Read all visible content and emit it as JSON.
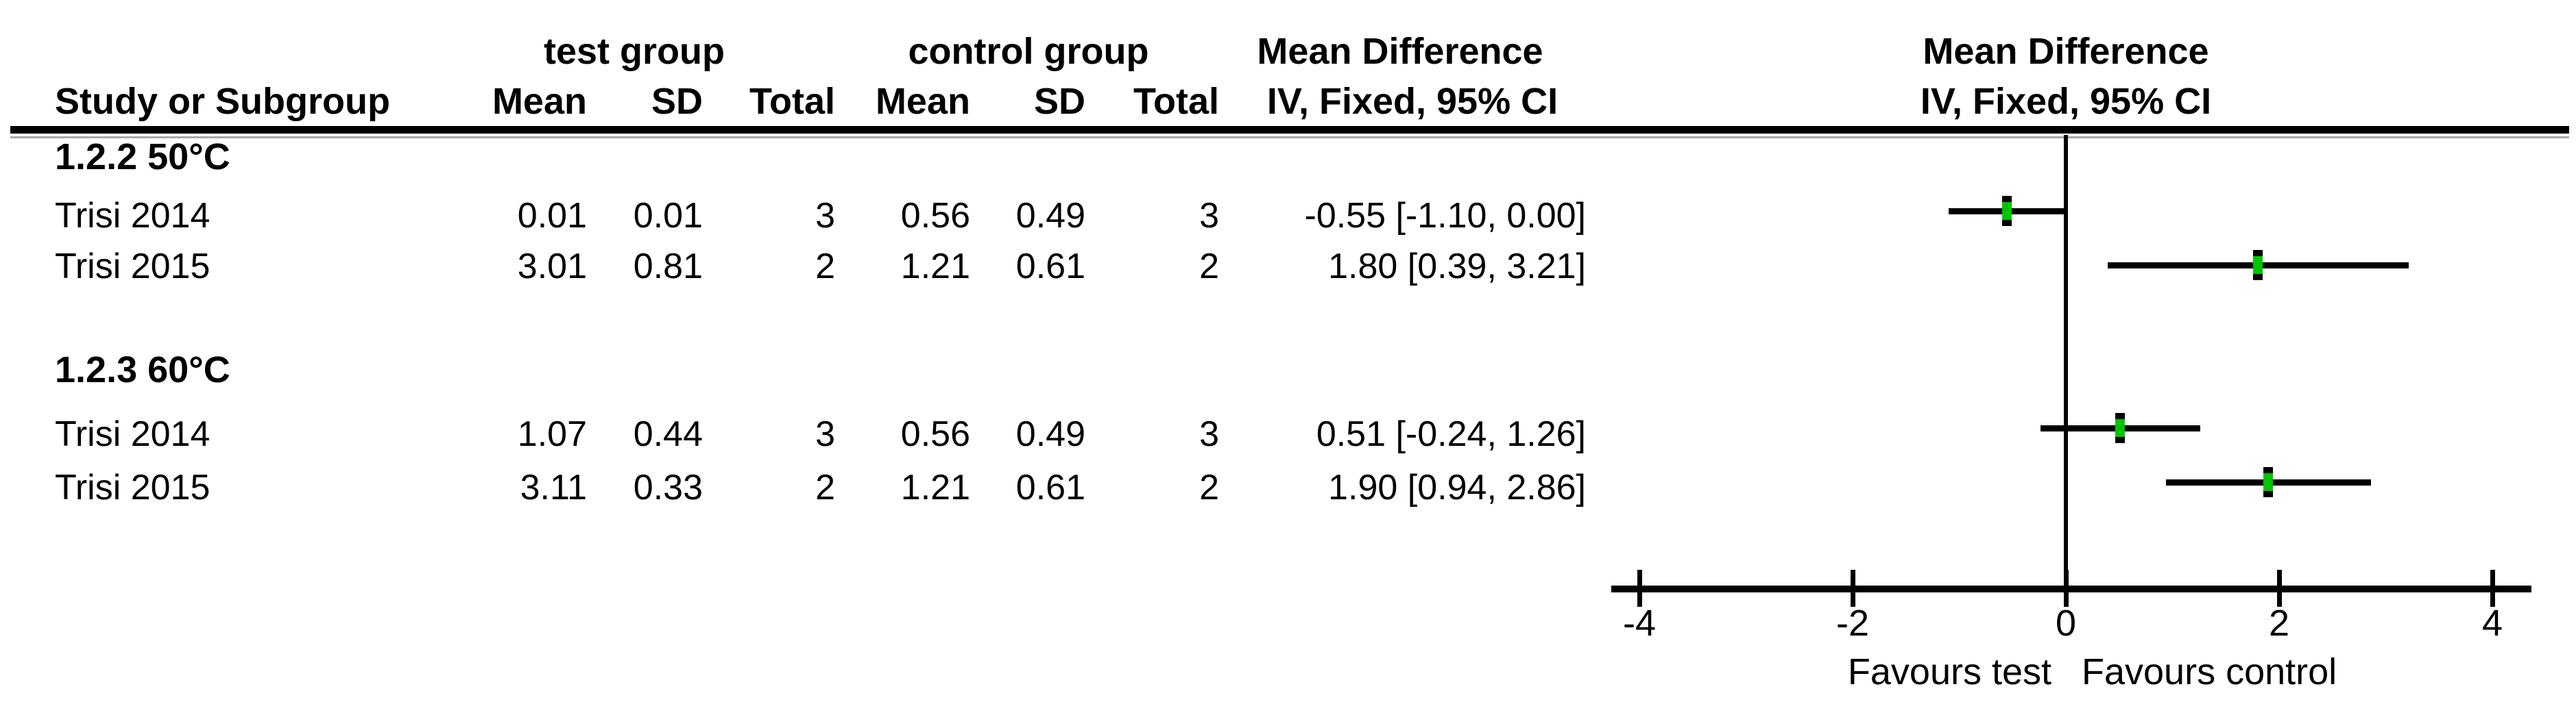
{
  "header": {
    "test_group": "test group",
    "control_group": "control group",
    "effect_title": "Mean Difference",
    "effect_subtitle": "IV, Fixed, 95% CI",
    "plot_title": "Mean Difference",
    "plot_subtitle": "IV, Fixed, 95% CI",
    "study_col": "Study or Subgroup",
    "subcols": [
      "Mean",
      "SD",
      "Total",
      "Mean",
      "SD",
      "Total"
    ]
  },
  "table": {
    "rows": [
      {
        "type": "subgroup",
        "label": "1.2.2 50°C"
      },
      {
        "type": "study",
        "study": "Trisi 2014",
        "t_mean": "0.01",
        "t_sd": "0.01",
        "t_total": "3",
        "c_mean": "0.56",
        "c_sd": "0.49",
        "c_total": "3",
        "ci": "-0.55 [-1.10, 0.00]",
        "est": -0.55,
        "lo": -1.1,
        "hi": 0.0
      },
      {
        "type": "study",
        "study": "Trisi 2015",
        "t_mean": "3.01",
        "t_sd": "0.81",
        "t_total": "2",
        "c_mean": "1.21",
        "c_sd": "0.61",
        "c_total": "2",
        "ci": "1.80 [0.39, 3.21]",
        "est": 1.8,
        "lo": 0.39,
        "hi": 3.21
      },
      {
        "type": "subgroup",
        "label": "1.2.3 60°C"
      },
      {
        "type": "study",
        "study": "Trisi 2014",
        "t_mean": "1.07",
        "t_sd": "0.44",
        "t_total": "3",
        "c_mean": "0.56",
        "c_sd": "0.49",
        "c_total": "3",
        "ci": "0.51 [-0.24, 1.26]",
        "est": 0.51,
        "lo": -0.24,
        "hi": 1.26
      },
      {
        "type": "study",
        "study": "Trisi 2015",
        "t_mean": "3.11",
        "t_sd": "0.33",
        "t_total": "2",
        "c_mean": "1.21",
        "c_sd": "0.61",
        "c_total": "2",
        "ci": "1.90 [0.94, 2.86]",
        "est": 1.9,
        "lo": 0.94,
        "hi": 2.86
      }
    ]
  },
  "axis": {
    "tick_labels": [
      "-4",
      "-2",
      "0",
      "2",
      "4"
    ],
    "tick_values": [
      -4,
      -2,
      0,
      2,
      4
    ],
    "favours_left": "Favours test",
    "favours_right": "Favours control"
  },
  "colors": {
    "marker_green": "#00c400",
    "line_black": "#000000",
    "shadow_gray": "#a8a8a8",
    "background": "#ffffff",
    "text": "#000000"
  },
  "chart_data": {
    "type": "scatter",
    "variant": "forest-plot-mean-difference",
    "title": "Mean Difference",
    "method": "IV, Fixed, 95% CI",
    "xlim": [
      -4,
      4
    ],
    "xticks": [
      -4,
      -2,
      0,
      2,
      4
    ],
    "xlabel_left": "Favours test",
    "xlabel_right": "Favours control",
    "grid": false,
    "legend_position": "none",
    "subgroups": [
      {
        "name": "1.2.2 50°C",
        "studies": [
          {
            "study": "Trisi 2014",
            "test": {
              "mean": 0.01,
              "sd": 0.01,
              "total": 3
            },
            "control": {
              "mean": 0.56,
              "sd": 0.49,
              "total": 3
            },
            "md": -0.55,
            "ci95": [
              -1.1,
              0.0
            ]
          },
          {
            "study": "Trisi 2015",
            "test": {
              "mean": 3.01,
              "sd": 0.81,
              "total": 2
            },
            "control": {
              "mean": 1.21,
              "sd": 0.61,
              "total": 2
            },
            "md": 1.8,
            "ci95": [
              0.39,
              3.21
            ]
          }
        ]
      },
      {
        "name": "1.2.3 60°C",
        "studies": [
          {
            "study": "Trisi 2014",
            "test": {
              "mean": 1.07,
              "sd": 0.44,
              "total": 3
            },
            "control": {
              "mean": 0.56,
              "sd": 0.49,
              "total": 3
            },
            "md": 0.51,
            "ci95": [
              -0.24,
              1.26
            ]
          },
          {
            "study": "Trisi 2015",
            "test": {
              "mean": 3.11,
              "sd": 0.33,
              "total": 2
            },
            "control": {
              "mean": 1.21,
              "sd": 0.61,
              "total": 2
            },
            "md": 1.9,
            "ci95": [
              0.94,
              2.86
            ]
          }
        ]
      }
    ]
  }
}
